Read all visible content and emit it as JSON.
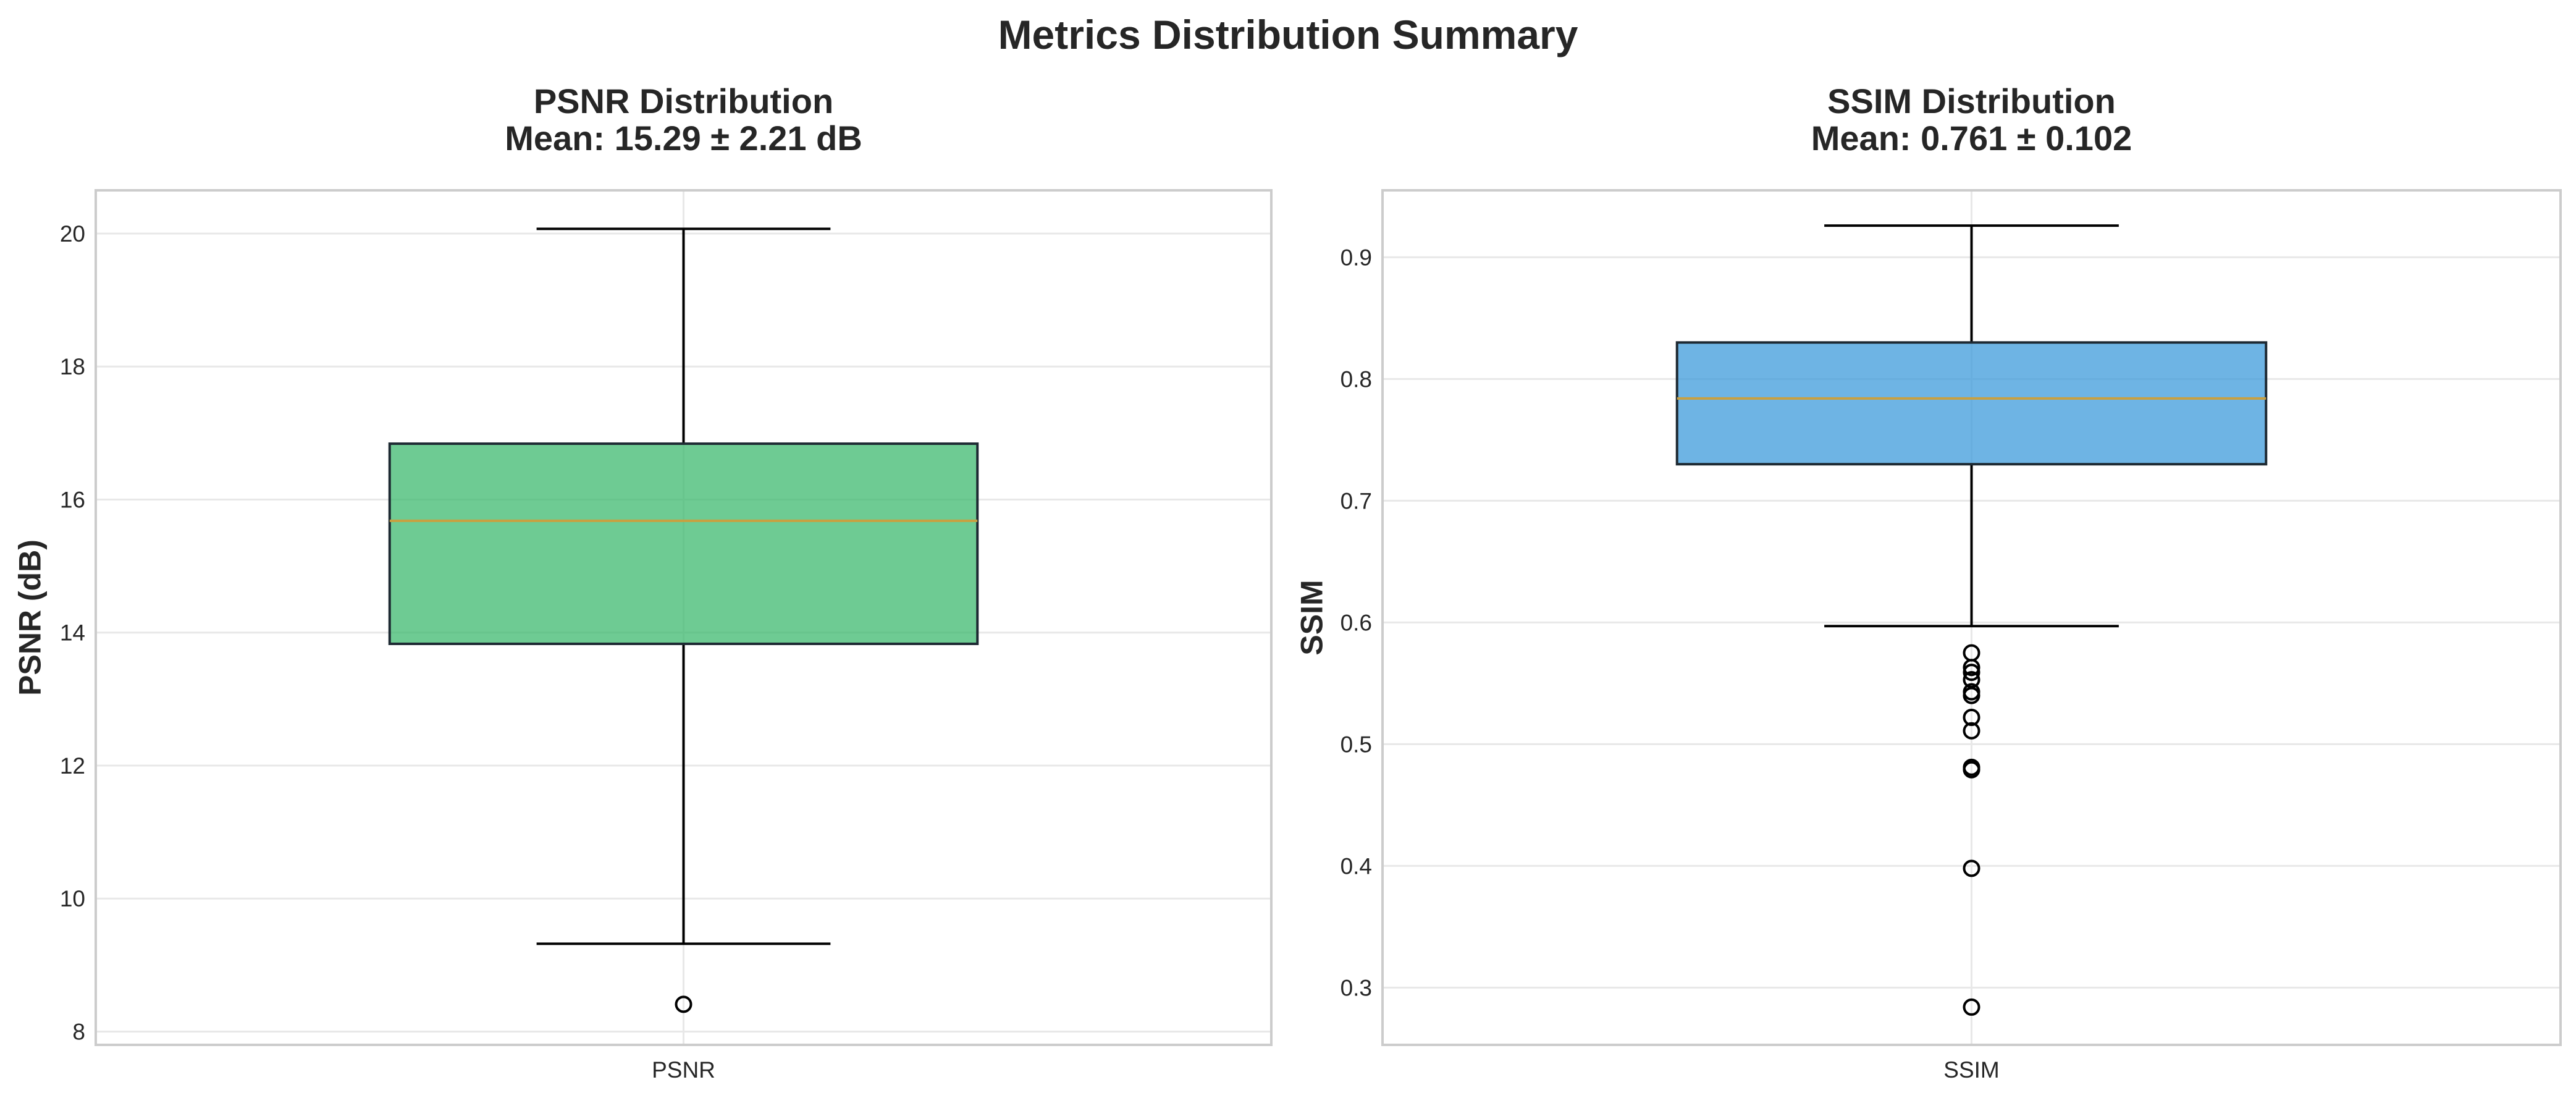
{
  "figure": {
    "suptitle": "Metrics Distribution Summary"
  },
  "chart_data": [
    {
      "type": "box",
      "title_line1": "PSNR Distribution",
      "title_line2": "Mean: 15.29 ± 2.21 dB",
      "xlabel": "",
      "ylabel": "PSNR (dB)",
      "categories": [
        "PSNR"
      ],
      "ylim": [
        7.8,
        20.65
      ],
      "yticks": [
        8,
        10,
        12,
        14,
        16,
        18,
        20
      ],
      "ytick_labels": [
        "8",
        "10",
        "12",
        "14",
        "16",
        "18",
        "20"
      ],
      "box": {
        "whisker_low": 9.32,
        "q1": 13.83,
        "median": 15.68,
        "q3": 16.84,
        "whisker_high": 20.07,
        "outliers": [
          8.41
        ]
      },
      "box_color": "#3dba6f",
      "median_color": "#c8a040",
      "grid": true
    },
    {
      "type": "box",
      "title_line1": "SSIM Distribution",
      "title_line2": "Mean: 0.761 ± 0.102",
      "xlabel": "",
      "ylabel": "SSIM",
      "categories": [
        "SSIM"
      ],
      "ylim": [
        0.253,
        0.955
      ],
      "yticks": [
        0.3,
        0.4,
        0.5,
        0.6,
        0.7,
        0.8,
        0.9
      ],
      "ytick_labels": [
        "0.3",
        "0.4",
        "0.5",
        "0.6",
        "0.7",
        "0.8",
        "0.9"
      ],
      "box": {
        "whisker_low": 0.597,
        "q1": 0.73,
        "median": 0.784,
        "q3": 0.83,
        "whisker_high": 0.926,
        "outliers": [
          0.575,
          0.563,
          0.559,
          0.553,
          0.543,
          0.54,
          0.522,
          0.511,
          0.481,
          0.479,
          0.398,
          0.284
        ]
      },
      "box_color": "#3d9bdb",
      "median_color": "#c8a040",
      "grid": true
    }
  ]
}
